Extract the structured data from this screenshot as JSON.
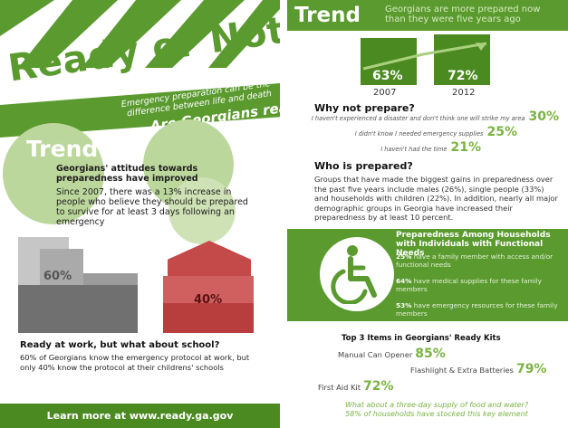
{
  "left": {
    "title": "Ready or Not?",
    "lead_text": "Emergency preparation can be the difference between life and death",
    "lead_question": "Are Georgians ready?",
    "trend_label": "Trend",
    "trend_heading": "Georgians' attitudes towards preparedness have improved",
    "trend_body": "Since 2007, there was a 13% increase in people who believe they should be prepared to survive for at least 3 days following an emergency",
    "work_pct": "60%",
    "school_pct": "40%",
    "work_heading": "Ready at work, but what about school?",
    "work_body": "60% of Georgians know the emergency protocol at work, but only 40% know the protocol at their childrens' schools",
    "footer": "Learn more at www.ready.ga.gov"
  },
  "right": {
    "trend_label": "Trend",
    "trend_sub": "Georgians are more prepared now than they were five years ago",
    "years": [
      {
        "pct": "63%",
        "year": "2007"
      },
      {
        "pct": "72%",
        "year": "2012"
      }
    ],
    "why_heading": "Why not prepare?",
    "why_items": [
      {
        "text": "I haven't experienced a disaster and don't think one will strike my area",
        "pct": "30%"
      },
      {
        "text": "I didn't know I needed emergency supplies",
        "pct": "25%"
      },
      {
        "text": "I haven't had the time",
        "pct": "21%"
      }
    ],
    "who_heading": "Who is prepared?",
    "who_body": "Groups that have made the biggest gains in preparedness over the past five years include males (26%), single people (33%) and households with children (22%). In addition, nearly all major demographic groups in Georgia have increased their preparedness by at least 10 percent.",
    "needs_heading": "Preparedness Among Households with Individuals with Functional Needs",
    "needs_items": [
      {
        "pct": "25%",
        "text": "have a family member with access and/or functional needs"
      },
      {
        "pct": "64%",
        "text": "have medical supplies for these family members"
      },
      {
        "pct": "53%",
        "text": "have emergency resources for these family members"
      }
    ],
    "kits_heading": "Top 3 Items in Georgians' Ready Kits",
    "kits": [
      {
        "label": "Manual Can Opener",
        "pct": "85%"
      },
      {
        "label": "Flashlight & Extra Batteries",
        "pct": "79%"
      },
      {
        "label": "First Aid Kit",
        "pct": "72%"
      }
    ],
    "kits_foot_q": "What about a three-day supply of food and water?",
    "kits_foot_a": "58% of households have stocked this key element"
  },
  "colors": {
    "brand_green": "#5a9a2e",
    "dark_green": "#4a8a20",
    "light_green": "#bcd79c",
    "accent_pct": "#7ab342",
    "school_red": "#b83d3d"
  },
  "icons": [
    "wheelchair-icon",
    "trend-arrow-icon"
  ]
}
